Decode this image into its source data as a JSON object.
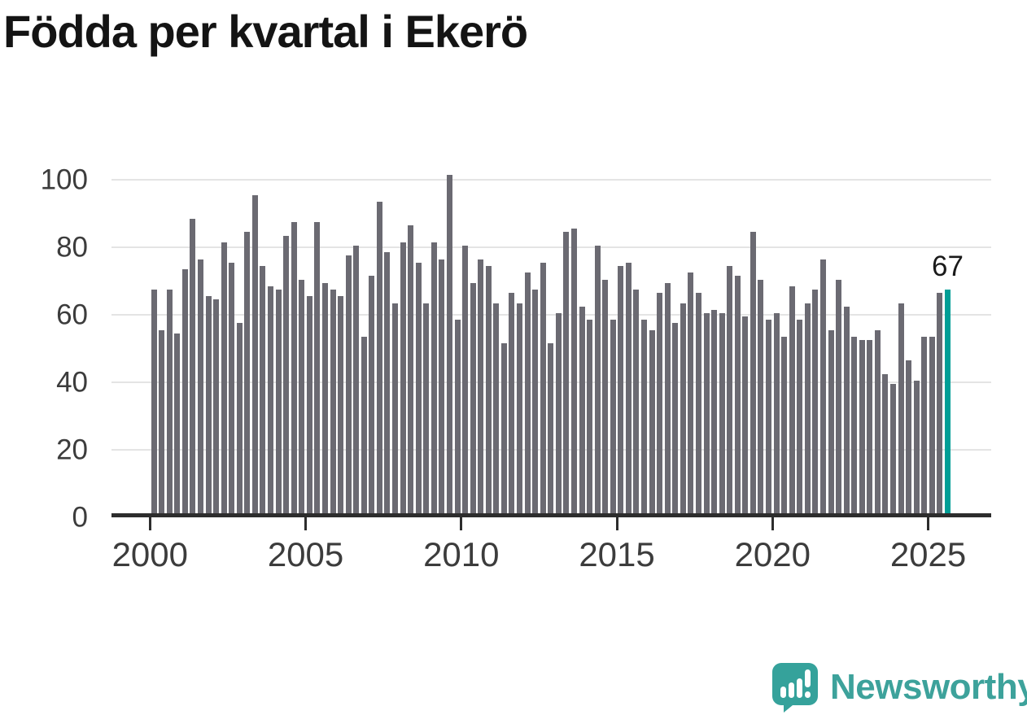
{
  "title": "Födda per kvartal i Ekerö",
  "chart_data": {
    "type": "bar",
    "title": "Födda per kvartal i Ekerö",
    "frequency": "quarterly",
    "x_start": "2000-Q1",
    "x_end": "2025-Q3",
    "x_tick_labels": [
      "2000",
      "2005",
      "2010",
      "2015",
      "2020",
      "2025"
    ],
    "y_tick_labels": [
      "0",
      "20",
      "40",
      "60",
      "80",
      "100"
    ],
    "y_ticks": [
      0,
      20,
      40,
      60,
      80,
      100
    ],
    "ylim": [
      0,
      105
    ],
    "grid": "horizontal",
    "legend": "none",
    "values": [
      67,
      55,
      67,
      54,
      73,
      88,
      76,
      65,
      64,
      81,
      75,
      57,
      84,
      95,
      74,
      68,
      67,
      83,
      87,
      70,
      65,
      87,
      69,
      67,
      65,
      77,
      80,
      53,
      71,
      93,
      78,
      63,
      81,
      86,
      75,
      63,
      81,
      76,
      101,
      58,
      80,
      69,
      76,
      74,
      63,
      51,
      66,
      63,
      72,
      67,
      75,
      51,
      60,
      84,
      85,
      62,
      58,
      80,
      70,
      58,
      74,
      75,
      67,
      58,
      55,
      66,
      69,
      57,
      63,
      72,
      66,
      60,
      61,
      60,
      74,
      71,
      59,
      84,
      70,
      58,
      60,
      53,
      68,
      58,
      63,
      67,
      76,
      55,
      70,
      62,
      53,
      52,
      52,
      55,
      42,
      39,
      63,
      46,
      40,
      53,
      53,
      66,
      67
    ],
    "highlight": {
      "index": 102,
      "label": "2025-Q3",
      "value": 67,
      "annotation_text": "67"
    },
    "colors": {
      "bar": "#6b6a72",
      "highlight": "#009e96",
      "gridline": "#e4e4e4",
      "axis": "#2d2d2d",
      "tick_label": "#3c3c3c",
      "annotation": "#1a1a1a"
    }
  },
  "logo": {
    "text": "Newsworthy",
    "icon": "speech-bubble-bar-chart-icon",
    "color": "#3da29b"
  }
}
